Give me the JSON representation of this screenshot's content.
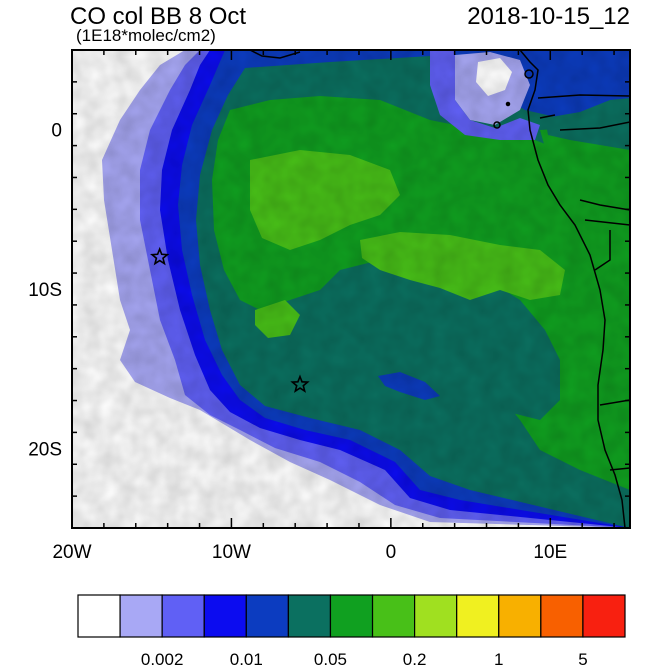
{
  "header": {
    "title": "CO col BB 8 Oct",
    "units": "(1E18*molec/cm2)",
    "datetime": "2018-10-15_12"
  },
  "map": {
    "lon_range": [
      -20,
      15
    ],
    "lat_range": [
      -25,
      5
    ],
    "x_ticks": [
      {
        "value": -20,
        "label": "20W"
      },
      {
        "value": -10,
        "label": "10W"
      },
      {
        "value": 0,
        "label": "0"
      },
      {
        "value": 10,
        "label": "10E"
      }
    ],
    "y_ticks": [
      {
        "value": 0,
        "label": "0"
      },
      {
        "value": -10,
        "label": "10S"
      },
      {
        "value": -20,
        "label": "20S"
      }
    ],
    "markers": [
      {
        "name": "star",
        "lon": -14.5,
        "lat": -8.0
      },
      {
        "name": "star",
        "lon": -5.7,
        "lat": -16.0
      }
    ]
  },
  "colorbar": {
    "colors": [
      "#ffffff",
      "#a8a8f5",
      "#6060f5",
      "#0c0cf0",
      "#0c3cc0",
      "#0b7060",
      "#10a020",
      "#48c018",
      "#a0e020",
      "#f0f020",
      "#f8b000",
      "#f86000",
      "#f82010"
    ],
    "labels": [
      {
        "after_box": 2,
        "text": "0.002"
      },
      {
        "after_box": 4,
        "text": "0.01"
      },
      {
        "after_box": 6,
        "text": "0.05"
      },
      {
        "after_box": 8,
        "text": "0.2"
      },
      {
        "after_box": 10,
        "text": "1"
      },
      {
        "after_box": 12,
        "text": "5"
      }
    ]
  }
}
